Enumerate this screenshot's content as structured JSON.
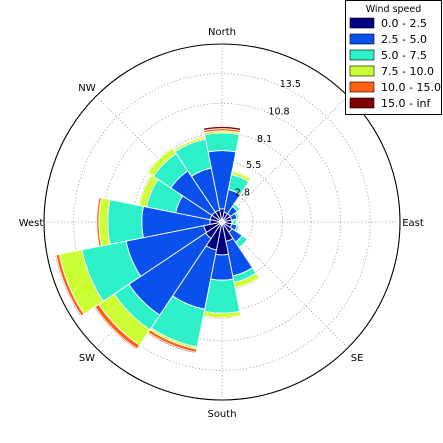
{
  "chart_data": {
    "type": "windrose",
    "directions": [
      "N",
      "NNE",
      "NE",
      "ENE",
      "E",
      "ESE",
      "SE",
      "SSE",
      "S",
      "SSW",
      "SW",
      "WSW",
      "W",
      "WNW",
      "NW",
      "NNW"
    ],
    "compass_labels": [
      {
        "text": "North",
        "angle": 0
      },
      {
        "text": "NW",
        "angle": 315
      },
      {
        "text": "West",
        "angle": 270
      },
      {
        "text": "SW",
        "angle": 225
      },
      {
        "text": "South",
        "angle": 180
      },
      {
        "text": "SE",
        "angle": 135
      },
      {
        "text": "East",
        "angle": 90
      }
    ],
    "radial_ticks": [
      2.8,
      5.5,
      8.1,
      10.8,
      13.5
    ],
    "radial_max": 16.2,
    "legend": {
      "title": "Wind speed",
      "bins": [
        {
          "label": "0.0 - 2.5",
          "color": "#000080"
        },
        {
          "label": "2.5 - 5.0",
          "color": "#0a50ec"
        },
        {
          "label": "5.0 - 7.5",
          "color": "#2ef0c8"
        },
        {
          "label": "7.5 - 10.0",
          "color": "#ccff33"
        },
        {
          "label": "10.0 - 15.0",
          "color": "#ff6010"
        },
        {
          "label": "15.0 - inf",
          "color": "#800000"
        }
      ]
    },
    "series_cumulative": [
      [
        1.2,
        6.5,
        8.1,
        8.3,
        8.5,
        8.7
      ],
      [
        0.9,
        3.0,
        4.4,
        4.7,
        4.8,
        4.8
      ],
      [
        0.9,
        1.7,
        2.0,
        2.1,
        2.1,
        2.1
      ],
      [
        0.9,
        1.4,
        1.6,
        1.7,
        1.7,
        1.7
      ],
      [
        0.9,
        1.0,
        1.3,
        1.4,
        1.4,
        1.4
      ],
      [
        0.9,
        1.4,
        1.6,
        1.7,
        1.7,
        1.7
      ],
      [
        1.1,
        2.2,
        2.8,
        2.9,
        2.9,
        2.9
      ],
      [
        1.8,
        5.0,
        5.6,
        6.1,
        6.2,
        6.2
      ],
      [
        3.0,
        5.3,
        8.3,
        8.7,
        8.8,
        8.8
      ],
      [
        2.6,
        8.1,
        11.6,
        11.8,
        12.1,
        12.2
      ],
      [
        1.8,
        10.2,
        11.8,
        13.5,
        13.9,
        14.0
      ],
      [
        1.7,
        8.9,
        13.0,
        15.1,
        15.4,
        15.5
      ],
      [
        1.1,
        7.3,
        10.4,
        11.2,
        11.4,
        11.4
      ],
      [
        1.1,
        4.3,
        7.0,
        7.7,
        7.8,
        7.8
      ],
      [
        1.1,
        5.6,
        7.5,
        8.1,
        8.2,
        8.2
      ],
      [
        1.1,
        5.0,
        7.7,
        7.9,
        8.0,
        8.0
      ]
    ],
    "grid": true
  }
}
